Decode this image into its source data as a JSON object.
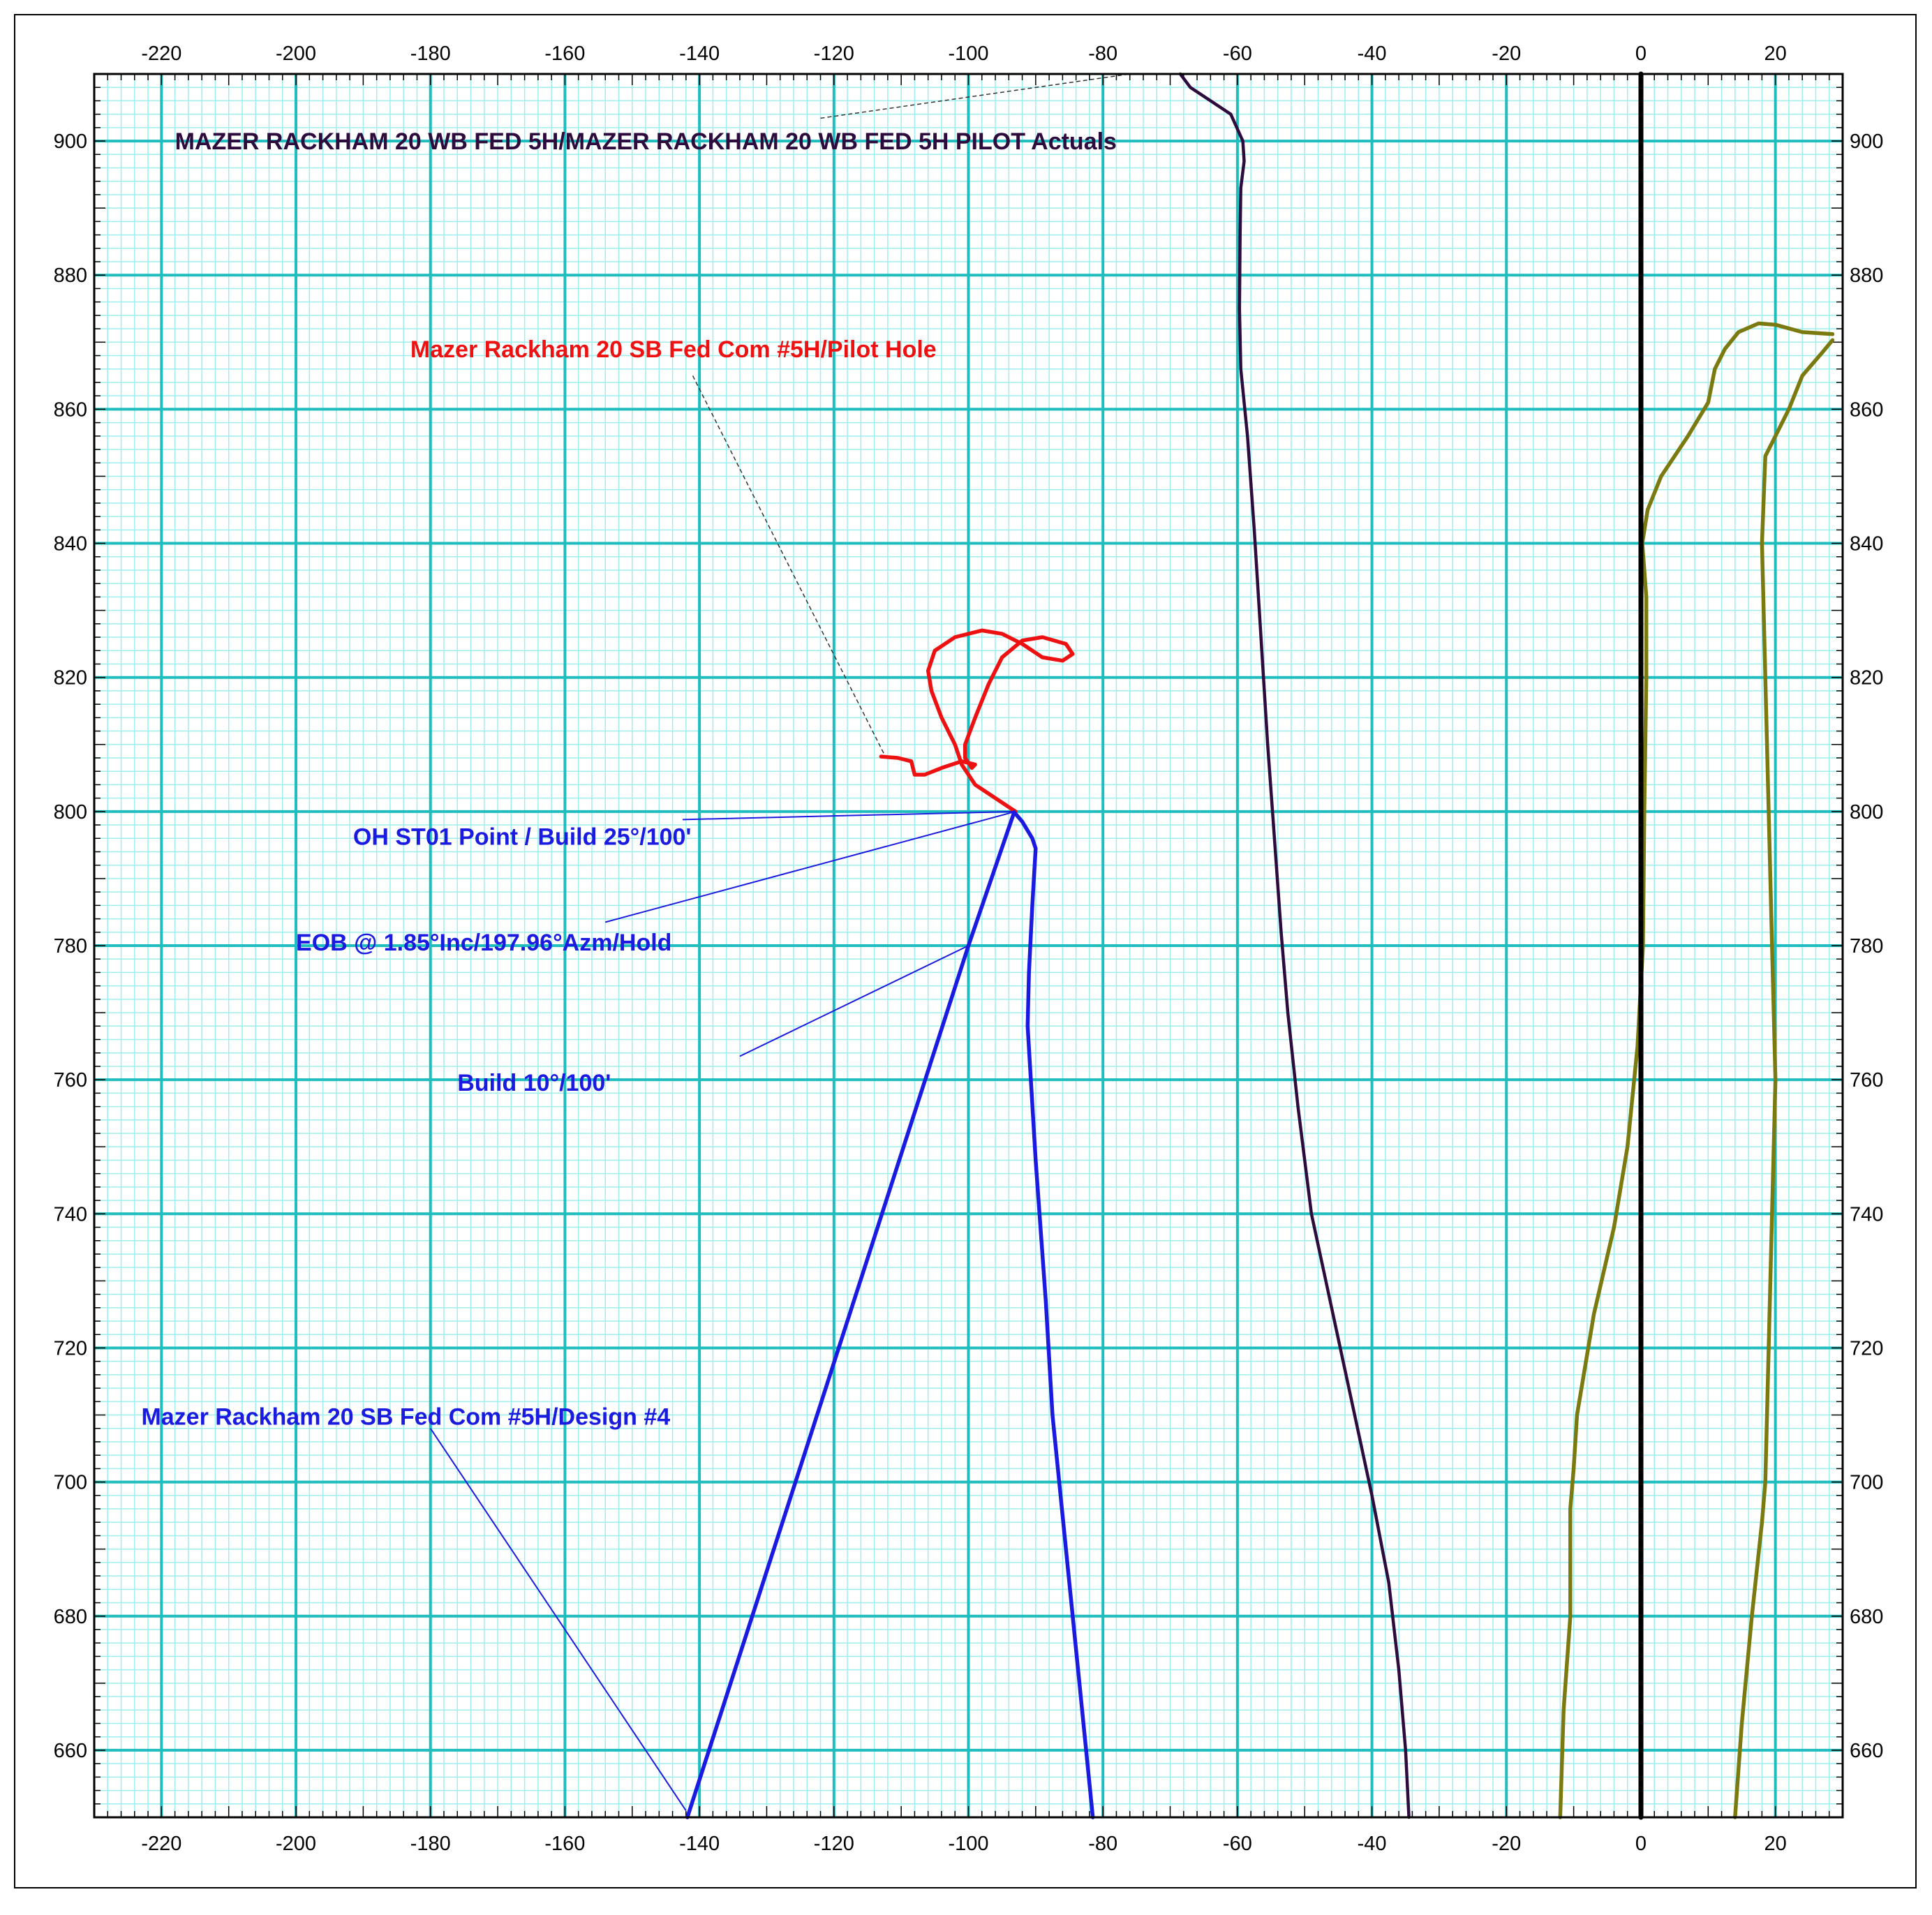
{
  "chart_data": {
    "type": "line",
    "title": "",
    "xlabel": "",
    "ylabel": "",
    "xlim": [
      -230,
      30
    ],
    "ylim": [
      650,
      910
    ],
    "x_ticks": [
      -220,
      -200,
      -180,
      -160,
      -140,
      -120,
      -100,
      -80,
      -60,
      -40,
      -20,
      0,
      20
    ],
    "y_ticks": [
      660,
      680,
      700,
      720,
      740,
      760,
      780,
      800,
      820,
      840,
      860,
      880,
      900
    ],
    "grid": {
      "major": true,
      "minor": true,
      "major_x_step": 20,
      "major_y_step": 20,
      "minor_step": 2
    },
    "colors": {
      "major_grid": "#1fbdbd",
      "minor_grid": "#9eeeee",
      "axis_zero": "#000000",
      "actuals": "#2e0b3d",
      "pilot_hole": "#ee1111",
      "design": "#1a1ae0",
      "offset_lines": "#7a7a10"
    },
    "series": [
      {
        "name": "MAZER RACKHAM 20 WB FED 5H/MAZER RACKHAM 20 WB FED 5H PILOT Actuals",
        "color": "#2e0b3d",
        "points": [
          [
            -34.5,
            650
          ],
          [
            -35,
            660
          ],
          [
            -36,
            672
          ],
          [
            -37.5,
            685
          ],
          [
            -40,
            698
          ],
          [
            -43,
            712
          ],
          [
            -46,
            726
          ],
          [
            -49,
            740
          ],
          [
            -51,
            756
          ],
          [
            -52.5,
            770
          ],
          [
            -53.5,
            782
          ],
          [
            -54.5,
            796
          ],
          [
            -55.5,
            810
          ],
          [
            -56.5,
            826
          ],
          [
            -57.5,
            842
          ],
          [
            -58.5,
            856
          ],
          [
            -59.5,
            866
          ],
          [
            -59.7,
            875
          ],
          [
            -59.6,
            886
          ],
          [
            -59.5,
            893
          ],
          [
            -59,
            897
          ],
          [
            -59.2,
            900
          ],
          [
            -61,
            904
          ],
          [
            -64,
            906
          ],
          [
            -67,
            908
          ],
          [
            -68.5,
            910
          ]
        ]
      },
      {
        "name": "Mazer Rackham 20 SB Fed Com #5H/Pilot Hole",
        "color": "#ee1111",
        "points": [
          [
            -93,
            800
          ],
          [
            -96,
            802
          ],
          [
            -99,
            804
          ],
          [
            -101,
            807
          ],
          [
            -102,
            810
          ],
          [
            -104,
            814
          ],
          [
            -105.5,
            818
          ],
          [
            -106,
            821
          ],
          [
            -105,
            824
          ],
          [
            -102,
            826
          ],
          [
            -98,
            827
          ],
          [
            -95,
            826.5
          ],
          [
            -92,
            825
          ],
          [
            -89,
            823
          ],
          [
            -86,
            822.5
          ],
          [
            -84.5,
            823.5
          ],
          [
            -85.5,
            825
          ],
          [
            -89,
            826
          ],
          [
            -92,
            825.5
          ],
          [
            -95,
            823
          ],
          [
            -97,
            819
          ],
          [
            -99,
            814
          ],
          [
            -100.5,
            810
          ],
          [
            -100.5,
            808
          ],
          [
            -99.5,
            806.5
          ],
          [
            -99,
            807
          ],
          [
            -101,
            807.5
          ],
          [
            -104,
            806.5
          ],
          [
            -106.5,
            805.5
          ],
          [
            -108,
            805.5
          ],
          [
            -108.5,
            807.5
          ],
          [
            -110.5,
            808
          ],
          [
            -113,
            808.2
          ]
        ]
      },
      {
        "name": "Mazer Rackham 20 SB Fed Com #5H/Design #4",
        "color": "#1a1ae0",
        "points": [
          [
            -141.8,
            650
          ],
          [
            -100,
            780
          ],
          [
            -93.2,
            799.9
          ],
          [
            -92,
            798.5
          ],
          [
            -90.5,
            796
          ],
          [
            -90,
            794.5
          ],
          [
            -90.5,
            786
          ],
          [
            -91,
            776
          ],
          [
            -91.2,
            768
          ],
          [
            -90,
            748
          ],
          [
            -88.5,
            727
          ],
          [
            -87.5,
            710
          ],
          [
            -85.5,
            690
          ],
          [
            -83.5,
            670
          ],
          [
            -81.5,
            650
          ]
        ]
      },
      {
        "color": "#7a7a10",
        "points": [
          [
            -12,
            650
          ],
          [
            -11.5,
            666
          ],
          [
            -10.5,
            680
          ],
          [
            -10.5,
            696
          ],
          [
            -10,
            702
          ],
          [
            -9.5,
            710
          ],
          [
            -7,
            725
          ],
          [
            -4,
            738
          ],
          [
            -2,
            750
          ],
          [
            -0.5,
            765
          ],
          [
            0.3,
            780
          ],
          [
            0.5,
            800
          ],
          [
            0.8,
            820
          ],
          [
            0.8,
            832
          ],
          [
            0.2,
            840
          ],
          [
            1,
            845
          ],
          [
            3,
            850
          ],
          [
            7,
            856
          ],
          [
            10,
            861
          ],
          [
            11,
            866
          ],
          [
            12.5,
            869
          ],
          [
            14.5,
            871.5
          ],
          [
            17.5,
            872.8
          ],
          [
            20,
            872.6
          ],
          [
            24,
            871.5
          ],
          [
            28.5,
            871.2
          ]
        ]
      },
      {
        "color": "#7a7a10",
        "points": [
          [
            14,
            650
          ],
          [
            15,
            664
          ],
          [
            16.5,
            680
          ],
          [
            18,
            694
          ],
          [
            18.5,
            700
          ],
          [
            19,
            720
          ],
          [
            19.5,
            740
          ],
          [
            20,
            760
          ],
          [
            19.5,
            780
          ],
          [
            19,
            800
          ],
          [
            18.5,
            820
          ],
          [
            18,
            840
          ],
          [
            18.5,
            853
          ],
          [
            20,
            856
          ],
          [
            22,
            860
          ],
          [
            24,
            865
          ],
          [
            27,
            868.5
          ],
          [
            28.5,
            870.3
          ]
        ]
      },
      {
        "color": "#000000",
        "points": [
          [
            0,
            650
          ],
          [
            0,
            910
          ]
        ]
      }
    ],
    "annotations": [
      {
        "text": "MAZER RACKHAM 20 WB FED 5H/MAZER RACKHAM 20 WB FED 5H PILOT Actuals",
        "color": "#2e0b3d"
      },
      {
        "text": "Mazer Rackham 20 SB Fed Com #5H/Pilot Hole",
        "color": "#ee1111"
      },
      {
        "text": "OH ST01 Point / Build 25°/100'",
        "color": "#1a1ae0"
      },
      {
        "text": "EOB @ 1.85°Inc/197.96°Azm/Hold",
        "color": "#1a1ae0"
      },
      {
        "text": "Build 10°/100'",
        "color": "#1a1ae0"
      },
      {
        "text": "Mazer Rackham 20 SB Fed Com #5H/Design #4",
        "color": "#1a1ae0"
      }
    ]
  }
}
